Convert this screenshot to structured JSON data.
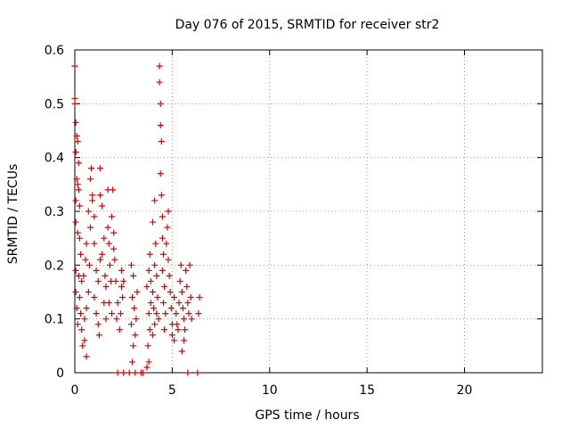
{
  "chart_data": {
    "type": "scatter",
    "title": "Day 076 of 2015, SRMTID for receiver str2",
    "xlabel": "GPS time / hours",
    "ylabel": "SRMTID / TECUs",
    "xlim": [
      0,
      24
    ],
    "ylim": [
      0,
      0.6
    ],
    "x_ticks": [
      0,
      5,
      10,
      15,
      20
    ],
    "x_tick_labels": [
      "0",
      "5",
      "10",
      "15",
      "20"
    ],
    "y_ticks": [
      0,
      0.1,
      0.2,
      0.3,
      0.4,
      0.5,
      0.6
    ],
    "y_tick_labels": [
      "0",
      "0.1",
      "0.2",
      "0.3",
      "0.4",
      "0.5",
      "0.6"
    ],
    "grid": true,
    "marker": "+",
    "colors": {
      "series": "#dd0000",
      "grid": "#a0a0a0",
      "axis": "#000000"
    },
    "series": [
      {
        "name": "str2",
        "points": [
          [
            0.0,
            0.57
          ],
          [
            0.0,
            0.51
          ],
          [
            0.0,
            0.5
          ],
          [
            0.05,
            0.465
          ],
          [
            0.05,
            0.41
          ],
          [
            0.1,
            0.44
          ],
          [
            0.15,
            0.43
          ],
          [
            0.2,
            0.39
          ],
          [
            0.1,
            0.36
          ],
          [
            0.15,
            0.35
          ],
          [
            0.05,
            0.32
          ],
          [
            0.2,
            0.34
          ],
          [
            0.25,
            0.31
          ],
          [
            0.05,
            0.28
          ],
          [
            0.15,
            0.26
          ],
          [
            0.25,
            0.25
          ],
          [
            0.3,
            0.22
          ],
          [
            0.05,
            0.19
          ],
          [
            0.2,
            0.18
          ],
          [
            0.35,
            0.17
          ],
          [
            0.05,
            0.15
          ],
          [
            0.25,
            0.14
          ],
          [
            0.1,
            0.12
          ],
          [
            0.3,
            0.11
          ],
          [
            0.15,
            0.09
          ],
          [
            0.35,
            0.08
          ],
          [
            0.4,
            0.05
          ],
          [
            0.5,
            0.06
          ],
          [
            0.6,
            0.03
          ],
          [
            0.5,
            0.1
          ],
          [
            0.6,
            0.12
          ],
          [
            0.7,
            0.15
          ],
          [
            0.45,
            0.18
          ],
          [
            0.55,
            0.21
          ],
          [
            0.75,
            0.2
          ],
          [
            0.6,
            0.24
          ],
          [
            0.8,
            0.27
          ],
          [
            0.7,
            0.3
          ],
          [
            0.9,
            0.32
          ],
          [
            0.8,
            0.36
          ],
          [
            0.85,
            0.38
          ],
          [
            0.9,
            0.33
          ],
          [
            1.0,
            0.29
          ],
          [
            1.0,
            0.24
          ],
          [
            1.1,
            0.19
          ],
          [
            1.2,
            0.17
          ],
          [
            1.0,
            0.14
          ],
          [
            1.1,
            0.11
          ],
          [
            1.2,
            0.09
          ],
          [
            1.25,
            0.07
          ],
          [
            1.3,
            0.21
          ],
          [
            1.3,
            0.38
          ],
          [
            1.3,
            0.33
          ],
          [
            1.4,
            0.31
          ],
          [
            1.5,
            0.25
          ],
          [
            1.4,
            0.22
          ],
          [
            1.55,
            0.18
          ],
          [
            1.6,
            0.16
          ],
          [
            1.5,
            0.13
          ],
          [
            1.6,
            0.1
          ],
          [
            1.7,
            0.27
          ],
          [
            1.75,
            0.24
          ],
          [
            1.8,
            0.2
          ],
          [
            1.85,
            0.17
          ],
          [
            1.75,
            0.13
          ],
          [
            1.9,
            0.11
          ],
          [
            1.7,
            0.34
          ],
          [
            1.9,
            0.29
          ],
          [
            2.0,
            0.26
          ],
          [
            2.0,
            0.23
          ],
          [
            1.95,
            0.34
          ],
          [
            2.05,
            0.21
          ],
          [
            2.1,
            0.17
          ],
          [
            2.2,
            0.13
          ],
          [
            2.15,
            0.1
          ],
          [
            2.3,
            0.08
          ],
          [
            2.4,
            0.19
          ],
          [
            2.4,
            0.16
          ],
          [
            2.45,
            0.14
          ],
          [
            2.35,
            0.11
          ],
          [
            2.5,
            0.17
          ],
          [
            2.2,
            0.0
          ],
          [
            2.5,
            0.0
          ],
          [
            2.8,
            0.0
          ],
          [
            2.9,
            0.2
          ],
          [
            3.0,
            0.18
          ],
          [
            2.95,
            0.14
          ],
          [
            3.05,
            0.12
          ],
          [
            2.9,
            0.09
          ],
          [
            3.1,
            0.07
          ],
          [
            3.0,
            0.05
          ],
          [
            2.95,
            0.02
          ],
          [
            3.2,
            0.15
          ],
          [
            3.15,
            0.1
          ],
          [
            3.1,
            0.0
          ],
          [
            3.4,
            0.0
          ],
          [
            3.5,
            0.0
          ],
          [
            3.7,
            0.01
          ],
          [
            3.8,
            0.02
          ],
          [
            3.75,
            0.05
          ],
          [
            3.85,
            0.08
          ],
          [
            3.8,
            0.11
          ],
          [
            3.9,
            0.13
          ],
          [
            3.7,
            0.16
          ],
          [
            3.8,
            0.19
          ],
          [
            3.85,
            0.22
          ],
          [
            3.9,
            0.17
          ],
          [
            4.0,
            0.15
          ],
          [
            4.05,
            0.12
          ],
          [
            4.1,
            0.09
          ],
          [
            4.0,
            0.07
          ],
          [
            4.1,
            0.2
          ],
          [
            4.0,
            0.28
          ],
          [
            4.1,
            0.32
          ],
          [
            4.15,
            0.24
          ],
          [
            4.2,
            0.18
          ],
          [
            4.25,
            0.14
          ],
          [
            4.2,
            0.11
          ],
          [
            4.3,
            0.1
          ],
          [
            4.35,
            0.57
          ],
          [
            4.35,
            0.54
          ],
          [
            4.4,
            0.5
          ],
          [
            4.4,
            0.46
          ],
          [
            4.45,
            0.43
          ],
          [
            4.4,
            0.37
          ],
          [
            4.45,
            0.33
          ],
          [
            4.5,
            0.29
          ],
          [
            4.5,
            0.25
          ],
          [
            4.55,
            0.22
          ],
          [
            4.5,
            0.19
          ],
          [
            4.6,
            0.16
          ],
          [
            4.55,
            0.13
          ],
          [
            4.65,
            0.11
          ],
          [
            4.6,
            0.08
          ],
          [
            4.7,
            0.24
          ],
          [
            4.75,
            0.27
          ],
          [
            4.8,
            0.3
          ],
          [
            4.8,
            0.21
          ],
          [
            4.85,
            0.18
          ],
          [
            4.9,
            0.15
          ],
          [
            4.95,
            0.12
          ],
          [
            5.0,
            0.09
          ],
          [
            5.0,
            0.07
          ],
          [
            5.1,
            0.06
          ],
          [
            5.1,
            0.14
          ],
          [
            5.2,
            0.11
          ],
          [
            5.25,
            0.09
          ],
          [
            5.3,
            0.08
          ],
          [
            5.35,
            0.13
          ],
          [
            5.45,
            0.2
          ],
          [
            5.4,
            0.17
          ],
          [
            5.5,
            0.15
          ],
          [
            5.55,
            0.12
          ],
          [
            5.6,
            0.1
          ],
          [
            5.65,
            0.08
          ],
          [
            5.6,
            0.06
          ],
          [
            5.5,
            0.04
          ],
          [
            5.7,
            0.19
          ],
          [
            5.75,
            0.16
          ],
          [
            5.8,
            0.13
          ],
          [
            5.85,
            0.11
          ],
          [
            5.9,
            0.2
          ],
          [
            5.95,
            0.14
          ],
          [
            6.0,
            0.1
          ],
          [
            5.8,
            0.0
          ],
          [
            6.3,
            0.0
          ],
          [
            6.4,
            0.14
          ],
          [
            6.35,
            0.11
          ]
        ]
      }
    ]
  }
}
